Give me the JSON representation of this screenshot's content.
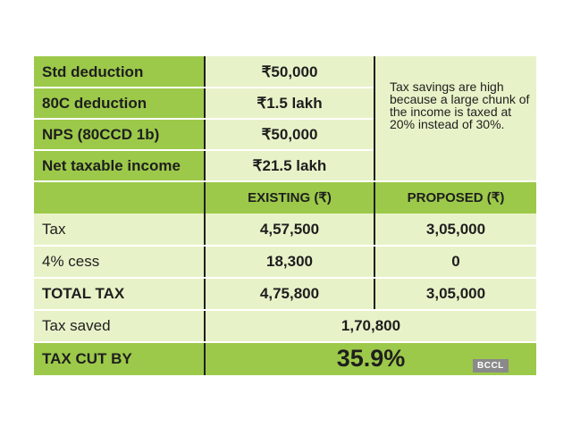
{
  "top_rows": [
    {
      "label": "Std deduction",
      "value": "₹50,000"
    },
    {
      "label": "80C deduction",
      "value": "₹1.5 lakh"
    },
    {
      "label": "NPS (80CCD 1b)",
      "value": "₹50,000"
    },
    {
      "label": "Net taxable income",
      "value": "₹21.5 lakh"
    }
  ],
  "note": "Tax savings are high because a large chunk of the income is taxed at 20% instead of 30%.",
  "header": {
    "existing": "EXISTING (₹)",
    "proposed": "PROPOSED (₹)"
  },
  "compare_rows": [
    {
      "label": "Tax",
      "existing": "4,57,500",
      "proposed": "3,05,000"
    },
    {
      "label": "4% cess",
      "existing": "18,300",
      "proposed": "0"
    },
    {
      "label": "TOTAL TAX",
      "existing": "4,75,800",
      "proposed": "3,05,000"
    }
  ],
  "tax_saved": {
    "label": "Tax saved",
    "value": "1,70,800"
  },
  "tax_cut": {
    "label": "TAX CUT BY",
    "value": "35.9%"
  },
  "watermark": "BCCL",
  "colors": {
    "green": "#9cc94a",
    "light": "#e8f2c8"
  }
}
